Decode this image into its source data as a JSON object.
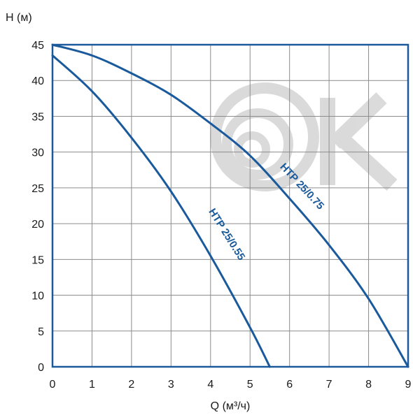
{
  "chart_data": {
    "type": "line",
    "xlabel": "Q (м³/ч)",
    "ylabel": "H (м)",
    "xlim": [
      0,
      9
    ],
    "ylim": [
      0,
      45
    ],
    "x_ticks": [
      0,
      1,
      2,
      3,
      4,
      5,
      6,
      7,
      8,
      9
    ],
    "y_ticks": [
      0,
      5,
      10,
      15,
      20,
      25,
      30,
      35,
      40,
      45
    ],
    "grid": true,
    "line_color": "#1a5a9c",
    "grid_color": "#8c8c8c",
    "series": [
      {
        "name": "HTP 25/0.55",
        "x": [
          0,
          1,
          2,
          3,
          4,
          5,
          5.5
        ],
        "y": [
          43.5,
          38.5,
          32,
          24.5,
          15.5,
          5.5,
          0
        ]
      },
      {
        "name": "HTP 25/0.75",
        "x": [
          0,
          1,
          2,
          3,
          4,
          5,
          6,
          7,
          8,
          9
        ],
        "y": [
          45,
          43.5,
          41,
          38,
          34,
          29.5,
          23.5,
          17,
          9.5,
          0
        ]
      }
    ],
    "annotations": [
      {
        "series": "HTP 25/0.55",
        "text": "HTP 25/0.55"
      },
      {
        "series": "HTP 25/0.75",
        "text": "HTP 25/0.75"
      }
    ]
  }
}
